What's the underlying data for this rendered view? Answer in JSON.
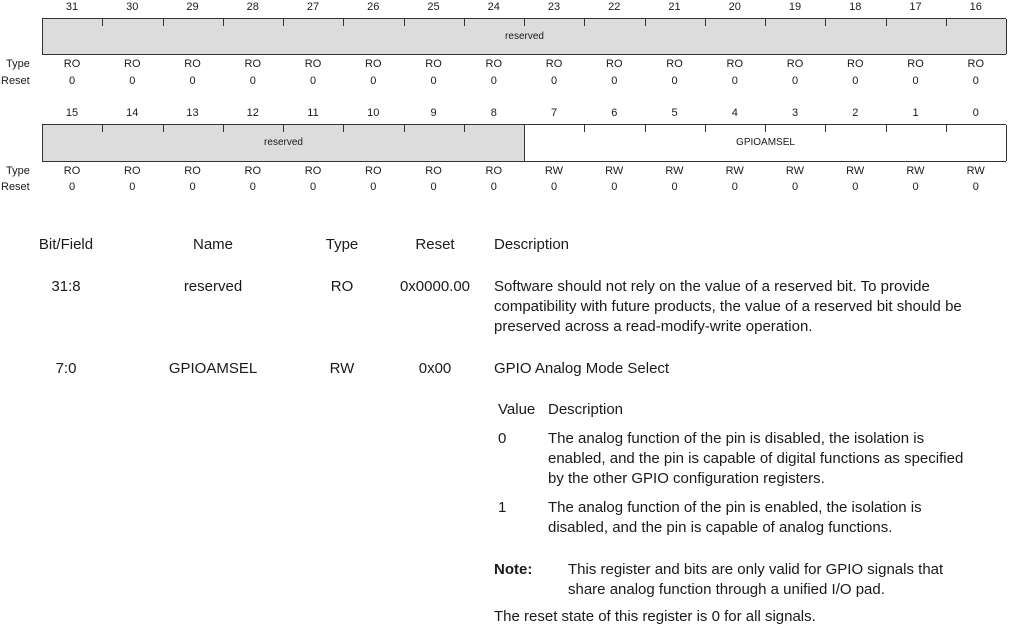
{
  "upper": {
    "bits": [
      "31",
      "30",
      "29",
      "28",
      "27",
      "26",
      "25",
      "24",
      "23",
      "22",
      "21",
      "20",
      "19",
      "18",
      "17",
      "16"
    ],
    "fields": [
      {
        "label": "reserved",
        "span": 16,
        "kind": "reserved"
      }
    ],
    "types": [
      "RO",
      "RO",
      "RO",
      "RO",
      "RO",
      "RO",
      "RO",
      "RO",
      "RO",
      "RO",
      "RO",
      "RO",
      "RO",
      "RO",
      "RO",
      "RO"
    ],
    "resets": [
      "0",
      "0",
      "0",
      "0",
      "0",
      "0",
      "0",
      "0",
      "0",
      "0",
      "0",
      "0",
      "0",
      "0",
      "0",
      "0"
    ]
  },
  "lower": {
    "bits": [
      "15",
      "14",
      "13",
      "12",
      "11",
      "10",
      "9",
      "8",
      "7",
      "6",
      "5",
      "4",
      "3",
      "2",
      "1",
      "0"
    ],
    "fields": [
      {
        "label": "reserved",
        "span": 8,
        "kind": "reserved"
      },
      {
        "label": "GPIOAMSEL",
        "span": 8,
        "kind": "active"
      }
    ],
    "types": [
      "RO",
      "RO",
      "RO",
      "RO",
      "RO",
      "RO",
      "RO",
      "RO",
      "RW",
      "RW",
      "RW",
      "RW",
      "RW",
      "RW",
      "RW",
      "RW"
    ],
    "resets": [
      "0",
      "0",
      "0",
      "0",
      "0",
      "0",
      "0",
      "0",
      "0",
      "0",
      "0",
      "0",
      "0",
      "0",
      "0",
      "0"
    ]
  },
  "row_labels": {
    "type": "Type",
    "reset": "Reset"
  },
  "table": {
    "headers": {
      "bitfield": "Bit/Field",
      "name": "Name",
      "type": "Type",
      "reset": "Reset",
      "description": "Description"
    },
    "rows": [
      {
        "bitfield": "31:8",
        "name": "reserved",
        "type": "RO",
        "reset": "0x0000.00",
        "desc_lines": [
          "Software should not rely on the value of a reserved bit. To provide",
          "compatibility with future products, the value of a reserved bit should be",
          "preserved across a read-modify-write operation."
        ]
      },
      {
        "bitfield": "7:0",
        "name": "GPIOAMSEL",
        "type": "RW",
        "reset": "0x00",
        "desc_title": "GPIO Analog Mode Select"
      }
    ],
    "value_table": {
      "headers": {
        "value": "Value",
        "description": "Description"
      },
      "rows": [
        {
          "value": "0",
          "lines": [
            "The analog function of the pin is disabled, the isolation is",
            "enabled, and the pin is capable of digital functions as specified",
            "by the other GPIO configuration registers."
          ]
        },
        {
          "value": "1",
          "lines": [
            "The analog function of the pin is enabled, the isolation is",
            "disabled, and the pin is capable of analog functions."
          ]
        }
      ]
    },
    "note": {
      "label": "Note:",
      "lines": [
        "This register and bits are only valid for GPIO signals that",
        "share analog function through a unified I/O pad."
      ]
    },
    "footer": "The reset state of this register is 0 for all signals."
  }
}
